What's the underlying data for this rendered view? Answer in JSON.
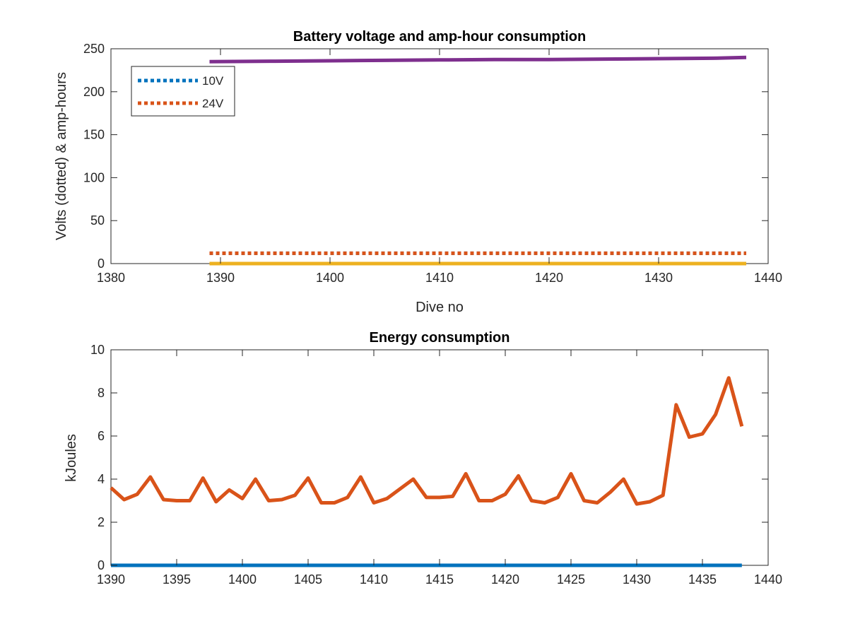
{
  "chart_data": [
    {
      "type": "line",
      "title": "Battery voltage and amp-hour consumption",
      "xlabel": "Dive no",
      "ylabel": "Volts (dotted) & amp-hours",
      "xlim": [
        1380,
        1440
      ],
      "ylim": [
        0,
        250
      ],
      "xticks": [
        1380,
        1390,
        1400,
        1410,
        1420,
        1430,
        1440
      ],
      "yticks": [
        0,
        50,
        100,
        150,
        200,
        250
      ],
      "grid": false,
      "legend": {
        "placement": "top-left",
        "entries": [
          "10V",
          "24V"
        ]
      },
      "series": [
        {
          "name": "10V",
          "style": "dotted",
          "color": "#0072BD",
          "x": [
            1389,
            1438
          ],
          "y": [
            12,
            12
          ]
        },
        {
          "name": "24V",
          "style": "dotted",
          "color": "#D95319",
          "x": [
            1389,
            1438
          ],
          "y": [
            12,
            12
          ]
        },
        {
          "style": "solid",
          "color": "#EDB120",
          "x": [
            1389,
            1438
          ],
          "y": [
            0,
            0
          ]
        },
        {
          "style": "solid",
          "color": "#7E2F8E",
          "x": [
            1389,
            1395,
            1400,
            1405,
            1410,
            1415,
            1420,
            1425,
            1430,
            1435,
            1438
          ],
          "y": [
            235,
            235.5,
            236,
            236.5,
            237,
            237.5,
            237.5,
            238,
            238.5,
            239,
            240
          ]
        }
      ]
    },
    {
      "type": "line",
      "title": "Energy consumption",
      "xlabel": "",
      "ylabel": "kJoules",
      "xlim": [
        1390,
        1440
      ],
      "ylim": [
        0,
        10
      ],
      "xticks": [
        1390,
        1395,
        1400,
        1405,
        1410,
        1415,
        1420,
        1425,
        1430,
        1435,
        1440
      ],
      "yticks": [
        0,
        2,
        4,
        6,
        8,
        10
      ],
      "grid": false,
      "series": [
        {
          "style": "solid",
          "color": "#0072BD",
          "x": [
            1390,
            1438
          ],
          "y": [
            0,
            0
          ]
        },
        {
          "style": "solid",
          "color": "#D95319",
          "x": [
            1390,
            1391,
            1392,
            1393,
            1394,
            1395,
            1396,
            1397,
            1398,
            1399,
            1400,
            1401,
            1402,
            1403,
            1404,
            1405,
            1406,
            1407,
            1408,
            1409,
            1410,
            1411,
            1412,
            1413,
            1414,
            1415,
            1416,
            1417,
            1418,
            1419,
            1420,
            1421,
            1422,
            1423,
            1424,
            1425,
            1426,
            1427,
            1428,
            1429,
            1430,
            1431,
            1432,
            1433,
            1434,
            1435,
            1436,
            1437,
            1438
          ],
          "y": [
            3.6,
            3.05,
            3.3,
            4.1,
            3.05,
            3.0,
            3.0,
            4.05,
            2.95,
            3.5,
            3.1,
            4.0,
            3.0,
            3.05,
            3.25,
            4.05,
            2.9,
            2.9,
            3.15,
            4.1,
            2.9,
            3.1,
            3.55,
            4.0,
            3.15,
            3.15,
            3.2,
            4.25,
            3.0,
            3.0,
            3.3,
            4.15,
            3.0,
            2.9,
            3.15,
            4.25,
            3.0,
            2.9,
            3.4,
            4.0,
            2.85,
            2.95,
            3.25,
            7.45,
            5.95,
            6.1,
            7.0,
            8.7,
            6.45
          ]
        }
      ]
    }
  ]
}
